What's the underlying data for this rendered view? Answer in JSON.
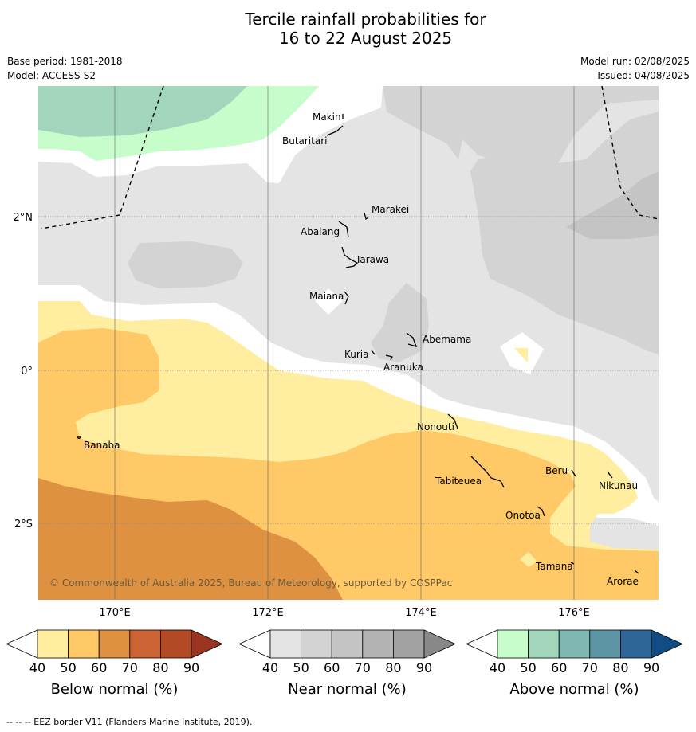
{
  "title": {
    "line1": "Tercile rainfall probabilities for",
    "line2": "16 to 22 August 2025"
  },
  "meta": {
    "base_period": "Base period: 1981-2018",
    "model": "Model: ACCESS-S2",
    "model_run": "Model run: 02/08/2025",
    "issued": "Issued: 04/08/2025"
  },
  "map": {
    "lon_range": [
      169.0,
      177.1
    ],
    "lat_range": [
      -3.0,
      3.4
    ],
    "lon_ticks": [
      {
        "value": 170,
        "label": "170°E"
      },
      {
        "value": 172,
        "label": "172°E"
      },
      {
        "value": 174,
        "label": "174°E"
      },
      {
        "value": 176,
        "label": "176°E"
      }
    ],
    "lat_ticks": [
      {
        "value": 2,
        "label": "2°N"
      },
      {
        "value": 0,
        "label": "0°"
      },
      {
        "value": -2,
        "label": "2°S"
      }
    ],
    "places": [
      {
        "name": "Makin",
        "lon": 172.95,
        "lat": 3.3
      },
      {
        "name": "Butaritari",
        "lon": 172.8,
        "lat": 3.05
      },
      {
        "name": "Marakei",
        "lon": 173.28,
        "lat": 2.0
      },
      {
        "name": "Abaiang",
        "lon": 172.95,
        "lat": 1.85
      },
      {
        "name": "Tarawa",
        "lon": 173.0,
        "lat": 1.4
      },
      {
        "name": "Maiana",
        "lon": 173.0,
        "lat": 0.95
      },
      {
        "name": "Abemama",
        "lon": 173.85,
        "lat": 0.4
      },
      {
        "name": "Kuria",
        "lon": 173.4,
        "lat": 0.23
      },
      {
        "name": "Aranuka",
        "lon": 173.6,
        "lat": 0.18
      },
      {
        "name": "Nonouti",
        "lon": 174.45,
        "lat": -0.65
      },
      {
        "name": "Banaba",
        "lon": 169.55,
        "lat": -0.87
      },
      {
        "name": "Tabiteuea",
        "lon": 174.8,
        "lat": -1.3
      },
      {
        "name": "Beru",
        "lon": 176.0,
        "lat": -1.33
      },
      {
        "name": "Nikunau",
        "lon": 176.45,
        "lat": -1.37
      },
      {
        "name": "Onotoa",
        "lon": 175.55,
        "lat": -1.8
      },
      {
        "name": "Tamana",
        "lon": 175.98,
        "lat": -2.5
      },
      {
        "name": "Arorae",
        "lon": 176.82,
        "lat": -2.65
      }
    ],
    "copyright": "© Commonwealth of Australia 2025, Bureau of Meteorology, supported by COSPPac"
  },
  "colorbars": [
    {
      "name": "below",
      "label": "Below normal (%)",
      "ticks": [
        "40",
        "50",
        "60",
        "70",
        "80",
        "90"
      ],
      "colors": [
        "#ffeda0",
        "#fec966",
        "#de9141",
        "#cc6334",
        "#b24a25",
        "#9b3420"
      ]
    },
    {
      "name": "near",
      "label": "Near normal (%)",
      "ticks": [
        "40",
        "50",
        "60",
        "70",
        "80",
        "90"
      ],
      "colors": [
        "#e4e4e4",
        "#d3d3d3",
        "#c4c4c4",
        "#b3b3b3",
        "#a2a2a2",
        "#888888"
      ]
    },
    {
      "name": "above",
      "label": "Above normal (%)",
      "ticks": [
        "40",
        "50",
        "60",
        "70",
        "80",
        "90"
      ],
      "colors": [
        "#c7fdcb",
        "#a1d6bc",
        "#7fb8b2",
        "#5d95a5",
        "#306598",
        "#124c84"
      ]
    }
  ],
  "footer": "--  --  -- EEZ border V11 (Flanders Marine Institute, 2019)."
}
